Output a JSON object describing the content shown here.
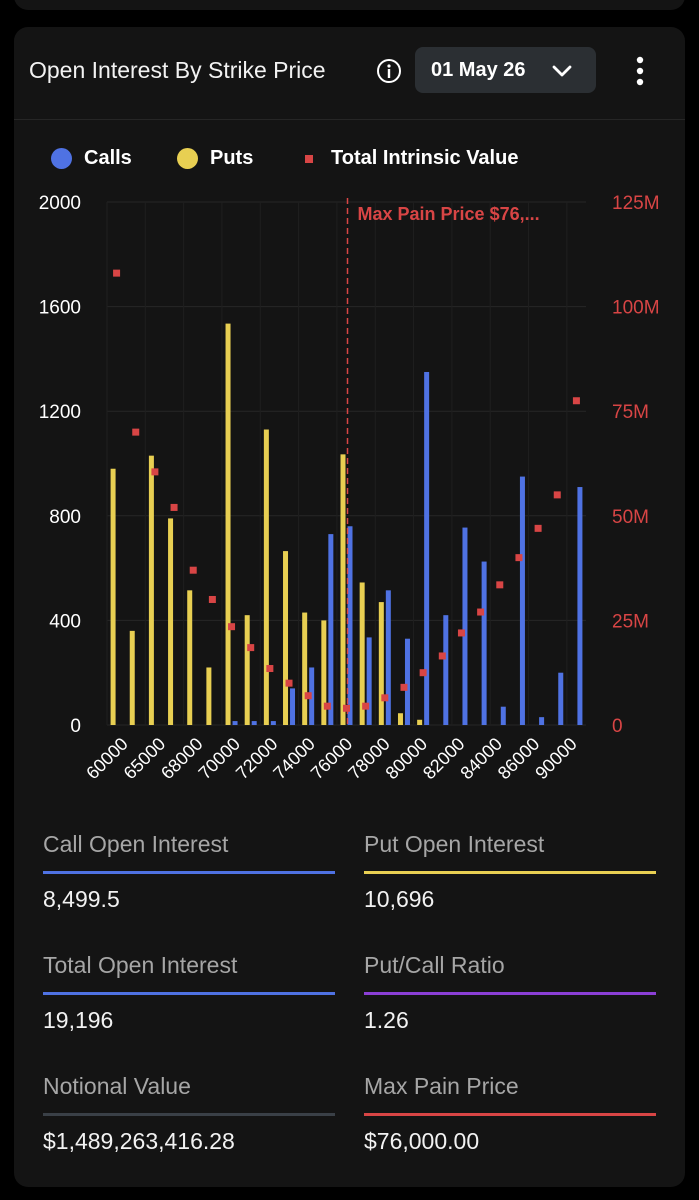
{
  "header": {
    "title": "Open Interest By Strike Price",
    "expiry_selected": "01 May 26"
  },
  "legend": {
    "calls": "Calls",
    "puts": "Puts",
    "intrinsic": "Total Intrinsic Value"
  },
  "colors": {
    "calls": "#4f72e3",
    "puts": "#e8cf52",
    "intrinsic": "#d84545",
    "total": "#4f72e3",
    "ratio": "#8b3fd6",
    "notional": "#3a4047",
    "maxpain": "#d84545"
  },
  "chart_data": {
    "type": "bar",
    "title": "Open Interest By Strike Price",
    "x_tick_labels": [
      "60000",
      "65000",
      "68000",
      "70000",
      "72000",
      "74000",
      "76000",
      "78000",
      "80000",
      "82000",
      "84000",
      "86000",
      "90000"
    ],
    "strikes": [
      60000,
      62000,
      65000,
      66000,
      68000,
      69000,
      70000,
      71000,
      72000,
      73000,
      74000,
      75000,
      76000,
      77000,
      78000,
      79000,
      80000,
      81000,
      82000,
      83000,
      84000,
      85000,
      86000,
      88000,
      90000
    ],
    "series": [
      {
        "name": "Calls",
        "axis": "left",
        "values": [
          0,
          0,
          0,
          0,
          0,
          0,
          15,
          15,
          15,
          140,
          220,
          730,
          760,
          335,
          515,
          330,
          1350,
          420,
          755,
          625,
          70,
          950,
          30,
          200,
          910
        ]
      },
      {
        "name": "Puts",
        "axis": "left",
        "values": [
          980,
          360,
          1030,
          790,
          515,
          220,
          1535,
          420,
          1130,
          665,
          430,
          400,
          1035,
          545,
          470,
          45,
          20,
          0,
          0,
          0,
          0,
          0,
          0,
          0,
          0
        ]
      },
      {
        "name": "Total Intrinsic Value",
        "axis": "right",
        "values": [
          108,
          70,
          60.5,
          52,
          37,
          30,
          23.5,
          18.5,
          13.5,
          10,
          7,
          4.5,
          4,
          4.5,
          6.5,
          9,
          12.5,
          16.5,
          22,
          27,
          33.5,
          40,
          47,
          55,
          77.5
        ]
      }
    ],
    "y_left": {
      "ticks": [
        "0",
        "400",
        "800",
        "1200",
        "1600",
        "2000"
      ],
      "range": [
        0,
        2000
      ]
    },
    "y_right": {
      "ticks": [
        "0",
        "25M",
        "50M",
        "75M",
        "100M",
        "125M"
      ],
      "range": [
        0,
        125
      ],
      "unit": "M"
    },
    "max_pain": {
      "strike": 76000,
      "label": "Max Pain Price $76,..."
    },
    "grid": true,
    "legend_position": "top-left"
  },
  "stats": [
    {
      "label": "Call Open Interest",
      "value": "8,499.5",
      "color": "#4f72e3"
    },
    {
      "label": "Put Open Interest",
      "value": "10,696",
      "color": "#e8cf52"
    },
    {
      "label": "Total Open Interest",
      "value": "19,196",
      "color": "#4f72e3"
    },
    {
      "label": "Put/Call Ratio",
      "value": "1.26",
      "color": "#8b3fd6"
    },
    {
      "label": "Notional Value",
      "value": "$1,489,263,416.28",
      "color": "#3a4047"
    },
    {
      "label": "Max Pain Price",
      "value": "$76,000.00",
      "color": "#d84545"
    }
  ]
}
